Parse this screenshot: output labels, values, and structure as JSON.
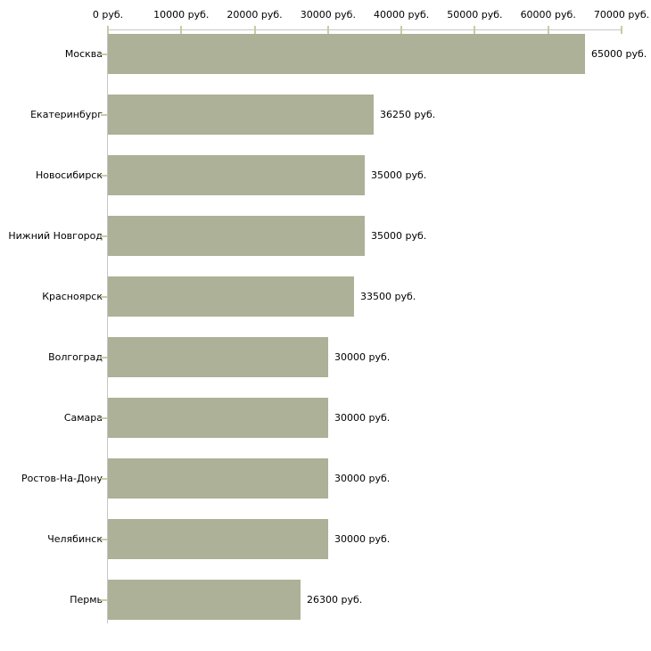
{
  "chart_data": {
    "type": "bar",
    "orientation": "horizontal",
    "title": "",
    "xlabel": "",
    "ylabel": "",
    "categories": [
      "Москва",
      "Екатеринбург",
      "Новосибирск",
      "Нижний Новгород",
      "Красноярск",
      "Волгоград",
      "Самара",
      "Ростов-На-Дону",
      "Челябинск",
      "Пермь"
    ],
    "values": [
      65000,
      36250,
      35000,
      35000,
      33500,
      30000,
      30000,
      30000,
      30000,
      26300
    ],
    "value_labels": [
      "65000 руб.",
      "36250 руб.",
      "35000 руб.",
      "35000 руб.",
      "33500 руб.",
      "30000 руб.",
      "30000 руб.",
      "30000 руб.",
      "30000 руб.",
      "26300 руб."
    ],
    "x_ticks": [
      0,
      10000,
      20000,
      30000,
      40000,
      50000,
      60000,
      70000
    ],
    "x_tick_labels": [
      "0 руб.",
      "10000 руб.",
      "20000 руб.",
      "30000 руб.",
      "40000 руб.",
      "50000 руб.",
      "60000 руб.",
      "70000 руб."
    ],
    "xlim": [
      0,
      70000
    ],
    "axis_position": "top",
    "unit": "руб.",
    "grid": false,
    "legend": false,
    "colors": {
      "bar": "#acb197",
      "axis_line": "#c6c6c6",
      "tick_mark": "#c9cba3",
      "text": "#000000",
      "background": "#ffffff"
    }
  }
}
